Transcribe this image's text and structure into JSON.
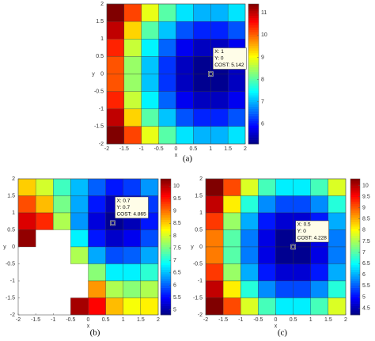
{
  "chart_data": [
    {
      "type": "heatmap",
      "caption": "(a)",
      "xlabel": "x",
      "ylabel": "y",
      "xbins": [
        -2,
        -1.5,
        -1,
        -0.5,
        0,
        0.5,
        1,
        1.5,
        2
      ],
      "ybins": [
        2,
        1.5,
        1,
        0.5,
        0,
        -0.5,
        -1,
        -1.5,
        -2
      ],
      "z": [
        [
          11.9,
          10.2,
          8.9,
          8.0,
          7.3,
          7.0,
          7.0,
          7.3
        ],
        [
          11.0,
          9.3,
          8.0,
          7.1,
          6.4,
          6.1,
          6.1,
          6.4
        ],
        [
          10.4,
          8.7,
          7.4,
          6.5,
          5.8,
          5.5,
          5.5,
          5.8
        ],
        [
          10.1,
          8.4,
          7.1,
          6.2,
          5.5,
          5.2,
          5.2,
          5.5
        ],
        [
          10.1,
          8.4,
          7.1,
          6.2,
          5.5,
          5.2,
          5.2,
          5.5
        ],
        [
          10.4,
          8.7,
          7.4,
          6.5,
          5.8,
          5.5,
          5.5,
          5.8
        ],
        [
          11.0,
          9.3,
          8.0,
          7.1,
          6.4,
          6.1,
          6.1,
          6.4
        ],
        [
          11.9,
          10.2,
          8.9,
          8.0,
          7.3,
          7.0,
          7.0,
          7.3
        ]
      ],
      "xlim": [
        -2,
        2
      ],
      "ylim": [
        -2,
        2
      ],
      "xticks": [
        -2,
        -1.5,
        -1,
        -0.5,
        0,
        0.5,
        1,
        1.5,
        2
      ],
      "yticks": [
        -2,
        -1.5,
        -1,
        -0.5,
        0,
        0.5,
        1,
        1.5,
        2
      ],
      "clim": [
        5.1,
        11.4
      ],
      "cticks": [
        6,
        7,
        8,
        9,
        10,
        11
      ],
      "datatip": {
        "x": 1,
        "y": 0,
        "labels": [
          "X: 1",
          "Y: 0",
          "COST: 5.142"
        ]
      }
    },
    {
      "type": "heatmap",
      "caption": "(b)",
      "xlabel": "x",
      "ylabel": "y",
      "xbins": [
        -2,
        -1.5,
        -1,
        -0.5,
        0,
        0.5,
        1,
        1.5,
        2
      ],
      "ybins": [
        2,
        1.5,
        1,
        0.5,
        0,
        -0.5,
        -1,
        -1.5,
        -2
      ],
      "z": [
        [
          8.5,
          8.0,
          7.2,
          6.5,
          6.0,
          5.6,
          5.8,
          6.3
        ],
        [
          9.2,
          8.6,
          7.5,
          6.4,
          5.6,
          5.1,
          5.3,
          5.8
        ],
        [
          9.8,
          9.4,
          7.8,
          6.3,
          5.3,
          4.9,
          5.1,
          5.6
        ],
        [
          10.2,
          null,
          null,
          6.8,
          5.6,
          5.2,
          5.4,
          5.9
        ],
        [
          null,
          null,
          null,
          7.8,
          6.4,
          5.9,
          6.0,
          6.4
        ],
        [
          null,
          null,
          null,
          null,
          7.6,
          6.8,
          6.8,
          7.1
        ],
        [
          null,
          null,
          null,
          null,
          8.8,
          7.8,
          7.6,
          7.8
        ],
        [
          null,
          null,
          null,
          10.1,
          9.6,
          8.6,
          8.2,
          8.3
        ]
      ],
      "xlim": [
        -2,
        2
      ],
      "ylim": [
        -2,
        2
      ],
      "xticks": [
        -2,
        -1.5,
        -1,
        -0.5,
        0,
        0.5,
        1,
        1.5,
        2
      ],
      "yticks": [
        -2,
        -1.5,
        -1,
        -0.5,
        0,
        0.5,
        1,
        1.5,
        2
      ],
      "clim": [
        4.8,
        10.3
      ],
      "cticks": [
        5,
        5.5,
        6,
        6.5,
        7,
        7.5,
        8,
        8.5,
        9,
        9.5,
        10
      ],
      "datatip": {
        "x": 0.7,
        "y": 0.7,
        "labels": [
          "X: 0.7",
          "Y: 0.7",
          "COST: 4.865"
        ]
      }
    },
    {
      "type": "heatmap",
      "caption": "(c)",
      "xlabel": "x",
      "ylabel": "y",
      "xbins": [
        -2,
        -1.5,
        -1,
        -0.5,
        0,
        0.5,
        1,
        1.5,
        2
      ],
      "ybins": [
        2,
        1.5,
        1,
        0.5,
        0,
        -0.5,
        -1,
        -1.5,
        -2
      ],
      "z": [
        [
          10.9,
          9.1,
          7.8,
          6.9,
          6.4,
          6.4,
          6.9,
          7.8
        ],
        [
          9.9,
          8.1,
          6.7,
          5.8,
          5.4,
          5.4,
          5.8,
          6.7
        ],
        [
          9.2,
          7.4,
          6.0,
          5.1,
          4.7,
          4.7,
          5.1,
          6.0
        ],
        [
          8.8,
          7.0,
          5.7,
          4.8,
          4.3,
          4.3,
          4.8,
          5.7
        ],
        [
          8.8,
          7.0,
          5.7,
          4.8,
          4.3,
          4.3,
          4.8,
          5.7
        ],
        [
          9.2,
          7.4,
          6.0,
          5.1,
          4.7,
          4.7,
          5.1,
          6.0
        ],
        [
          9.9,
          8.1,
          6.7,
          5.8,
          5.4,
          5.4,
          5.8,
          6.7
        ],
        [
          10.9,
          9.1,
          7.8,
          6.9,
          6.4,
          6.4,
          6.9,
          7.8
        ]
      ],
      "xlim": [
        -2,
        2
      ],
      "ylim": [
        -2,
        2
      ],
      "xticks": [
        -2,
        -1.5,
        -1,
        -0.5,
        0,
        0.5,
        1,
        1.5,
        2
      ],
      "yticks": [
        -2,
        -1.5,
        -1,
        -0.5,
        0,
        0.5,
        1,
        1.5,
        2
      ],
      "clim": [
        4.2,
        10.3
      ],
      "cticks": [
        4.5,
        5,
        5.5,
        6,
        6.5,
        7,
        7.5,
        8,
        8.5,
        9,
        9.5,
        10
      ],
      "datatip": {
        "x": 0.5,
        "y": 0,
        "labels": [
          "X: 0.5",
          "Y: 0",
          "COST: 4.228"
        ]
      }
    }
  ]
}
